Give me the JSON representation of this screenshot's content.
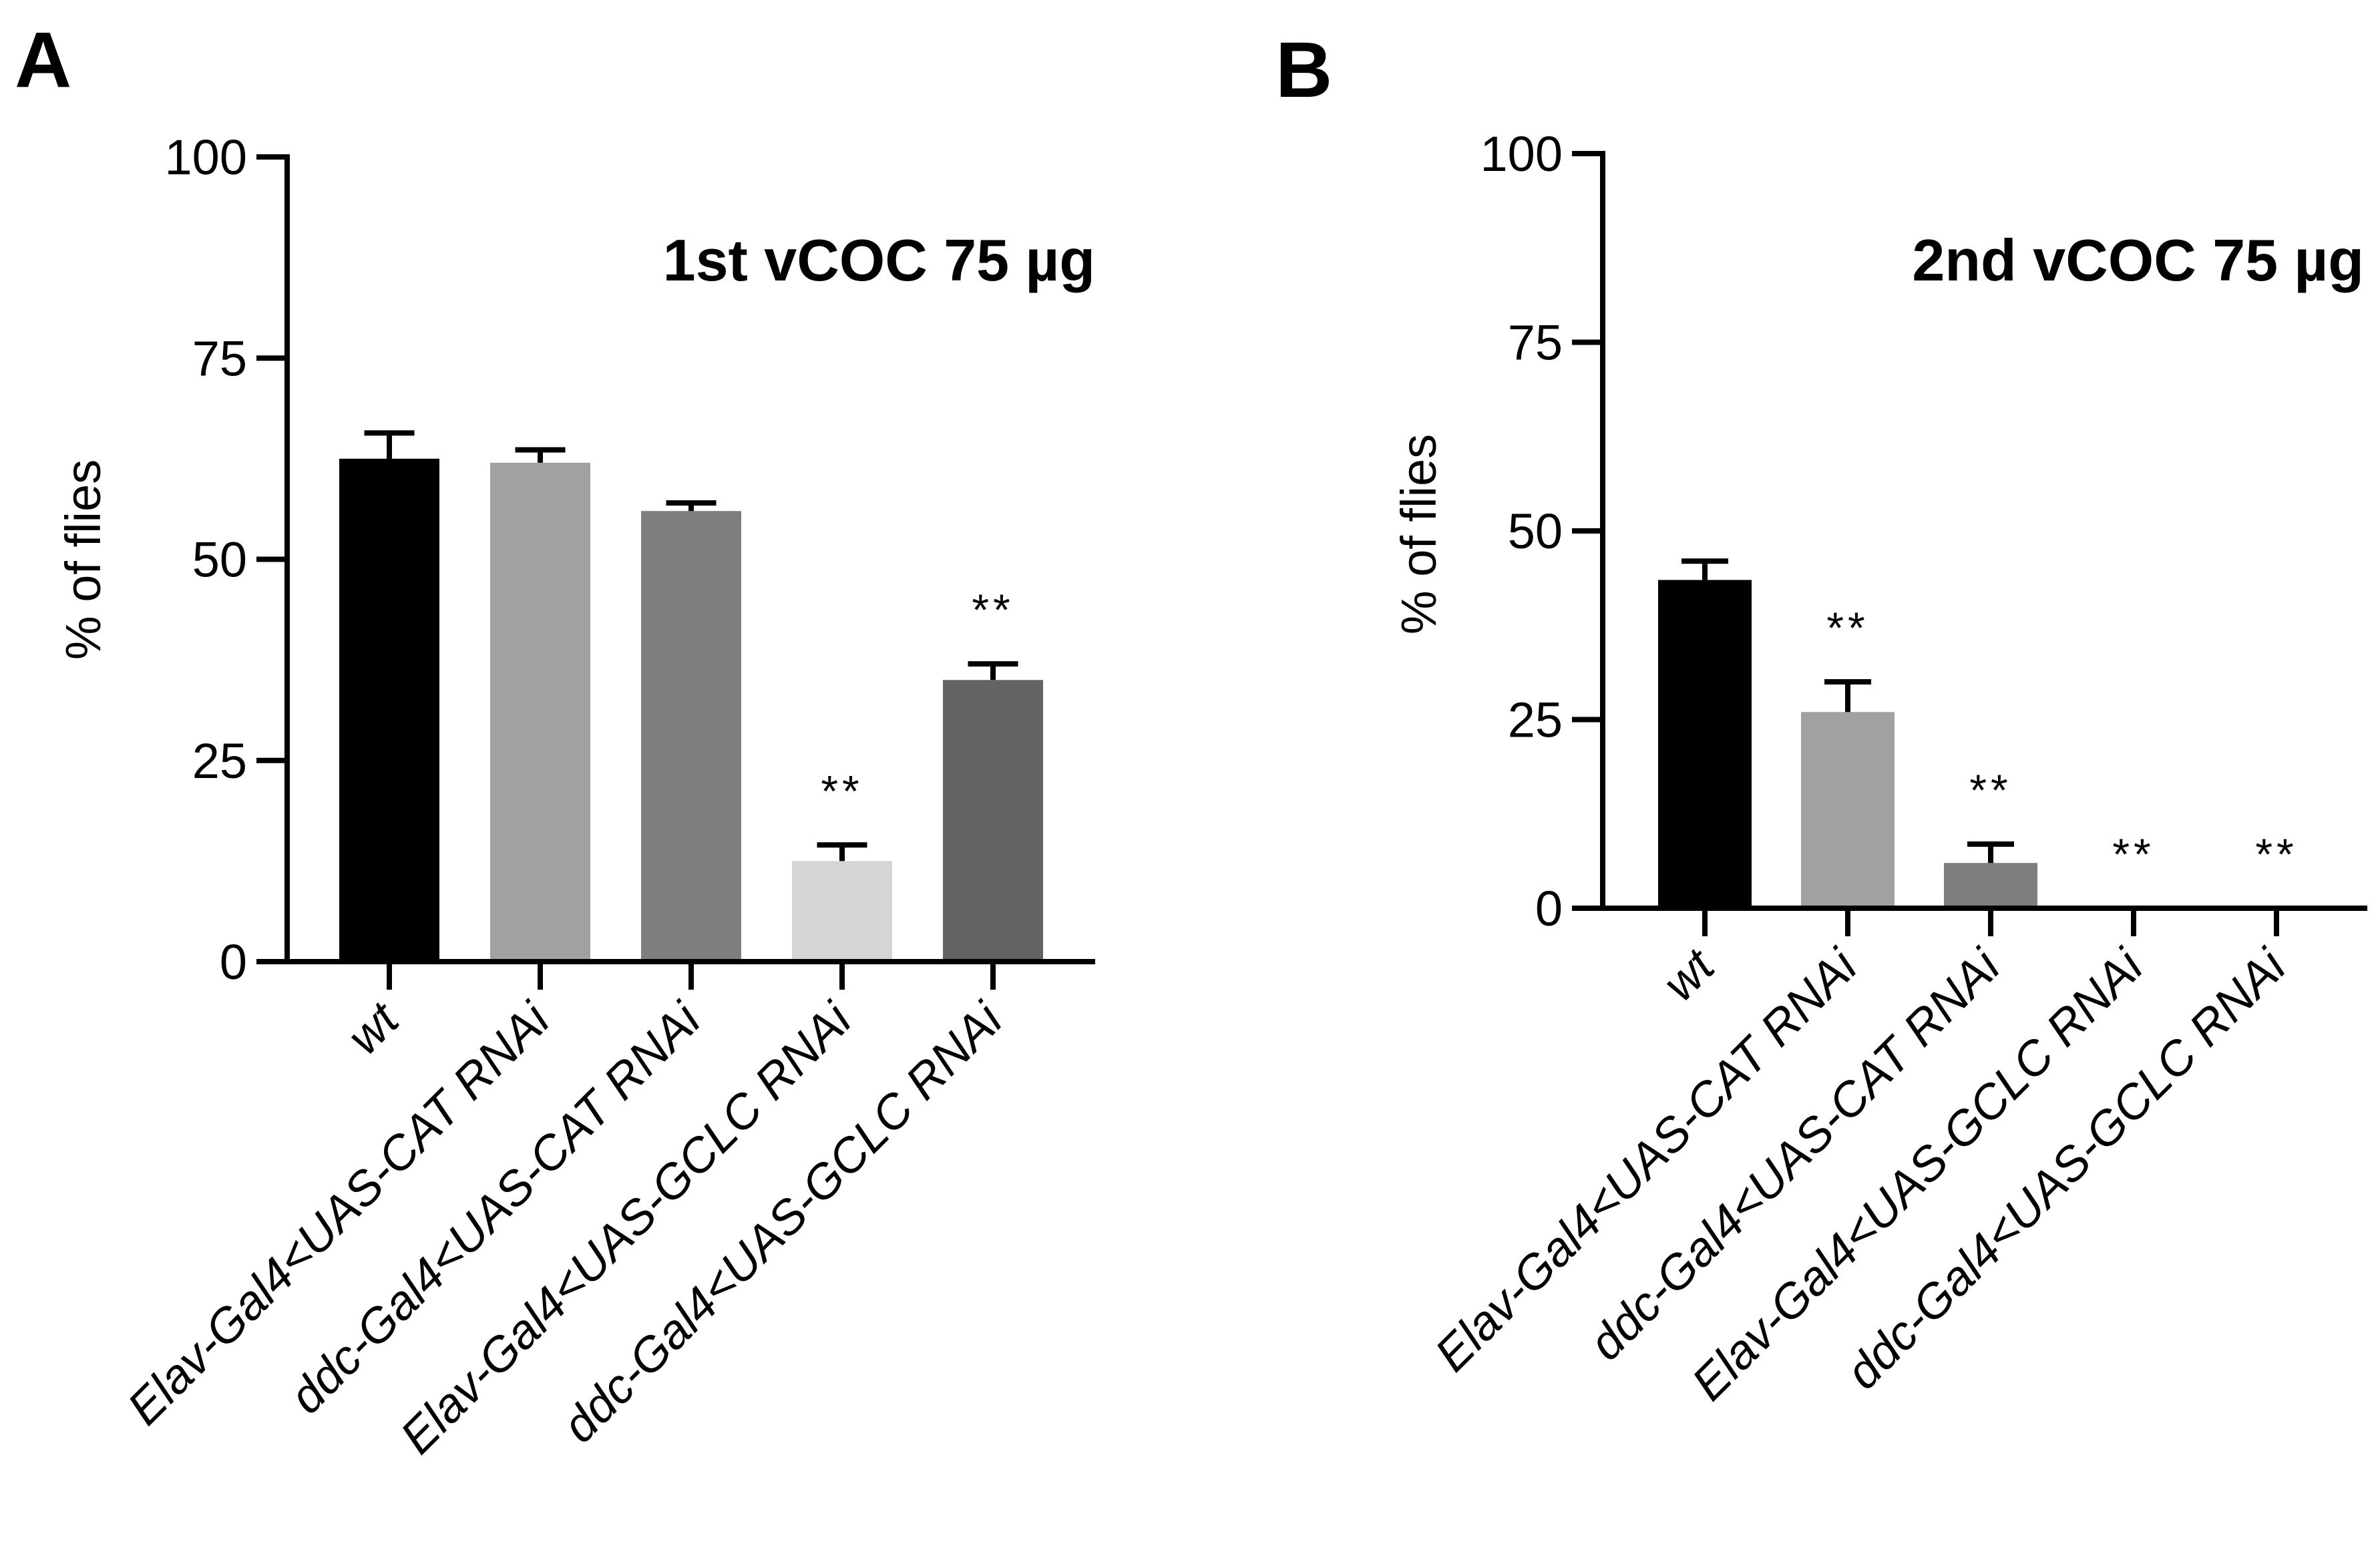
{
  "panels": [
    "A",
    "B"
  ],
  "chart_data": [
    {
      "type": "bar",
      "panel": "A",
      "title": "1st vCOC 75 µg",
      "xlabel": "",
      "ylabel": "% of flies",
      "ylim": [
        0,
        100
      ],
      "yticks": [
        "0",
        "25",
        "50",
        "75",
        "100"
      ],
      "categories": [
        "wt",
        "Elav-Gal4<UAS-CAT RNAi",
        "ddc-Gal4<UAS-CAT RNAi",
        "Elav-Gal4<UAS-GCLC RNAi",
        "ddc-Gal4<UAS-GCLC RNAi"
      ],
      "values": [
        62.5,
        62,
        56,
        12.5,
        35
      ],
      "errors": [
        3.2,
        1.6,
        1,
        2,
        2
      ],
      "significance": [
        "",
        "",
        "",
        "**",
        "**"
      ],
      "colors": [
        "#000000",
        "#a1a1a4",
        "#7e7e7e",
        "#d5d5d5",
        "#636363"
      ]
    },
    {
      "type": "bar",
      "panel": "B",
      "title": "2nd vCOC 75 µg",
      "xlabel": "",
      "ylabel": "% of flies",
      "ylim": [
        0,
        100
      ],
      "yticks": [
        "0",
        "25",
        "50",
        "75",
        "100"
      ],
      "categories": [
        "wt",
        "Elav-Gal4<UAS-CAT RNAi",
        "ddc-Gal4<UAS-CAT RNAi",
        "Elav-Gal4<UAS-GCLC RNAi",
        "ddc-Gal4<UAS-GCLC RNAi"
      ],
      "values": [
        43.5,
        26,
        6,
        0,
        0
      ],
      "errors": [
        2.5,
        4,
        2.5,
        0,
        0
      ],
      "significance": [
        "",
        "**",
        "**",
        "**",
        "**"
      ],
      "colors": [
        "#000000",
        "#a1a1a4",
        "#7e7e7e",
        "#d5d5d5",
        "#636363"
      ]
    }
  ]
}
